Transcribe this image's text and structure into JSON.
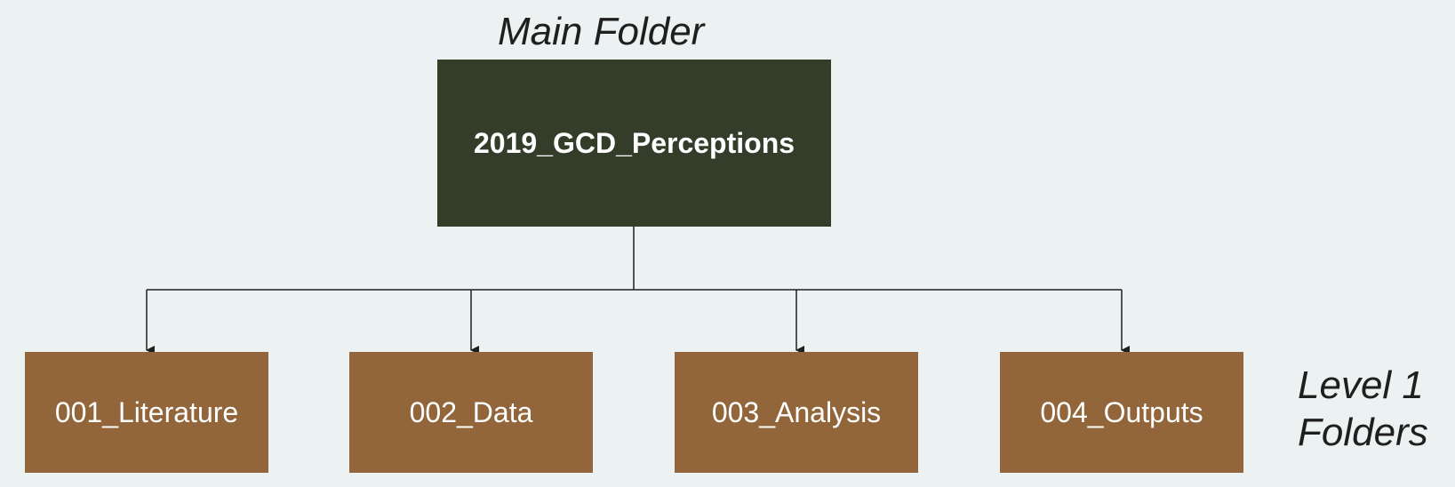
{
  "main_label": "Main Folder",
  "level_label_line1": "Level 1",
  "level_label_line2": "Folders",
  "root": {
    "label": "2019_GCD_Perceptions"
  },
  "children": [
    {
      "label": "001_Literature"
    },
    {
      "label": "002_Data"
    },
    {
      "label": "003_Analysis"
    },
    {
      "label": "004_Outputs"
    }
  ],
  "colors": {
    "background": "#ecf1f2",
    "root_fill": "#343d29",
    "child_fill": "#92663a",
    "connector": "#1f1f1f"
  }
}
